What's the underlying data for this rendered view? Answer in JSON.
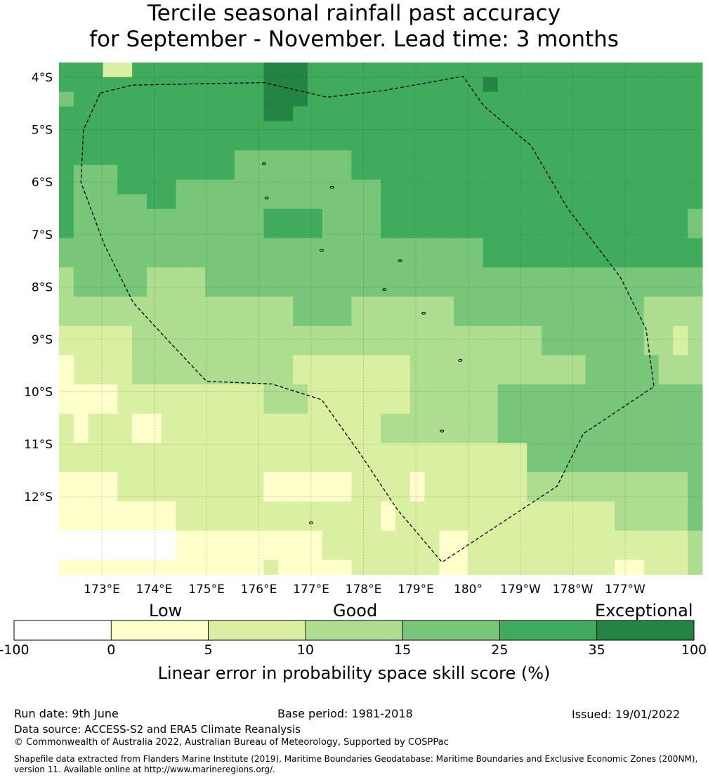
{
  "title": {
    "line1": "Tercile seasonal rainfall past accuracy",
    "line2": "for September - November. Lead time: 3 months"
  },
  "map": {
    "lat_labels": [
      "4°S",
      "5°S",
      "6°S",
      "7°S",
      "8°S",
      "9°S",
      "10°S",
      "11°S",
      "12°S"
    ],
    "lon_labels": [
      "173°E",
      "174°E",
      "175°E",
      "176°E",
      "177°E",
      "178°E",
      "179°E",
      "180°",
      "179°W",
      "178°W",
      "177°W"
    ],
    "palette": [
      "#ffffff",
      "#ffffcc",
      "#d9f0a3",
      "#addd8e",
      "#78c679",
      "#41ab5d",
      "#238443"
    ],
    "grid": [
      "55522555555555666555555555555555555555555555",
      "55555555555555666555555555555655555555555555",
      "45555555555555666555555555555555555555555555",
      "55555555555555665555555555555555555555555555",
      "55555555555555555555555555555555555555555555",
      "55555555555555555555555555555555555555555555",
      "55555555555544444444555555555555555555555555",
      "54445555555544444444555555555555555555555555",
      "54445555444444444444445555555555555555555555",
      "54444455444444444444445555555555555555555555",
      "54444444444444555544445555555555555555555554",
      "54444444444444555544445555555555555555555554",
      "44444444444444444444444444444555555555555555",
      "44444444444444444444444444444555555555555555",
      "34444433334444444444444444444444444444444444",
      "34444433334444444444444444444444444444444444",
      "33333333333333334444333333344444444444443333",
      "33333333333333334444333333344444444444443333",
      "22222333333333333333333333333333344444443323",
      "22222333333333333333333333333333344444443323",
      "12222333333333332222222233333333333344444333",
      "12222333333333332222222233333333333344444333",
      "11112222222222333222222233333344444444444444",
      "11112222222222333222222233333344444444444444",
      "21222112222222222222223333333344444444444444",
      "21222112222222222222223333333344444444444444",
      "22222222222222222222222222222222444444444444",
      "22222222222222222222222222222222444444444444",
      "11112222222222111111222212222222333333333334",
      "11112222222222111111222212222222333333333334",
      "11111111222222222222221222222222222222333334",
      "11111111222222222222221222222222222222333334",
      "00000000111111111122222222112222222222222223",
      "00000000111111111122222222112222222222222223",
      "11111111111111211111222222112222222222112223"
    ],
    "eez_boundary_lonlat": [
      [
        172.97,
        -4.3
      ],
      [
        173.57,
        -4.15
      ],
      [
        175.0,
        -4.12
      ],
      [
        176.1,
        -4.1
      ],
      [
        177.3,
        -4.38
      ],
      [
        178.4,
        -4.25
      ],
      [
        179.9,
        -3.98
      ],
      [
        180.3,
        -4.55
      ],
      [
        181.2,
        -5.3
      ],
      [
        181.9,
        -6.5
      ],
      [
        182.9,
        -7.8
      ],
      [
        183.4,
        -8.8
      ],
      [
        183.55,
        -9.9
      ],
      [
        182.2,
        -10.8
      ],
      [
        181.7,
        -11.8
      ],
      [
        179.5,
        -13.25
      ],
      [
        178.65,
        -12.25
      ],
      [
        177.95,
        -11.2
      ],
      [
        177.2,
        -10.15
      ],
      [
        176.25,
        -9.85
      ],
      [
        175.0,
        -9.8
      ],
      [
        174.2,
        -8.95
      ],
      [
        173.6,
        -8.3
      ],
      [
        173.05,
        -7.2
      ],
      [
        172.6,
        -6.0
      ],
      [
        172.65,
        -5.0
      ],
      [
        172.97,
        -4.3
      ]
    ]
  },
  "colorbar": {
    "category_labels": [
      "Low",
      "Good",
      "Exceptional"
    ],
    "tick_labels": [
      "-100",
      "0",
      "5",
      "10",
      "15",
      "25",
      "35",
      "100"
    ],
    "xlabel": "Linear error in probability space skill score (%)"
  },
  "footer": {
    "run_date": "Run date: 9th June",
    "base_period": "Base period: 1981-2018",
    "issued": "Issued: 19/01/2022",
    "data_source": "Data source: ACCESS-S2 and ERA5 Climate Reanalysis",
    "copyright": "© Commonwealth of Australia 2022, Australian Bureau of Meteorology, Supported by COSPPac",
    "shapefile": "Shapefile data extracted from Flanders Marine Institute (2019), Maritime Boundaries Geodatabase: Maritime Boundaries and Exclusive Economic Zones (200NM), version 11. Available online at http://www.marineregions.org/."
  }
}
